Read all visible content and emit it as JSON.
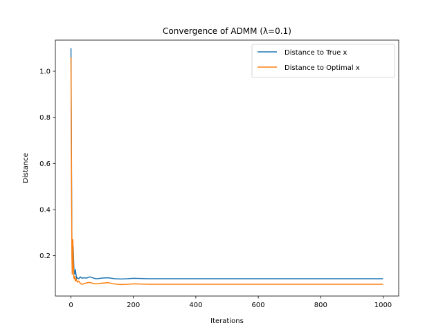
{
  "chart_data": {
    "type": "line",
    "title": "Convergence of ADMM (λ=0.1)",
    "xlabel": "Iterations",
    "ylabel": "Distance",
    "xlim": [
      -50,
      1050
    ],
    "ylim": [
      0.025,
      1.135
    ],
    "xticks": [
      0,
      200,
      400,
      600,
      800,
      1000
    ],
    "yticks": [
      0.2,
      0.4,
      0.6,
      0.8,
      1.0
    ],
    "xtick_labels": [
      "0",
      "200",
      "400",
      "600",
      "800",
      "1000"
    ],
    "ytick_labels": [
      "0.2",
      "0.4",
      "0.6",
      "0.8",
      "1.0"
    ],
    "grid": false,
    "legend_position": "top-right",
    "series": [
      {
        "name": "Distance to True x",
        "color": "#1f77b4",
        "x": [
          0,
          1,
          2,
          3,
          4,
          5,
          6,
          7,
          8,
          9,
          10,
          12,
          14,
          16,
          18,
          20,
          25,
          30,
          35,
          40,
          50,
          60,
          70,
          80,
          90,
          100,
          120,
          140,
          160,
          180,
          200,
          250,
          300,
          400,
          500,
          600,
          700,
          800,
          900,
          1000
        ],
        "y": [
          1.1,
          0.8,
          0.5,
          0.25,
          0.15,
          0.17,
          0.22,
          0.24,
          0.2,
          0.16,
          0.13,
          0.12,
          0.14,
          0.12,
          0.1,
          0.105,
          0.1,
          0.108,
          0.102,
          0.104,
          0.103,
          0.108,
          0.104,
          0.1,
          0.101,
          0.103,
          0.104,
          0.1,
          0.099,
          0.1,
          0.102,
          0.1,
          0.1,
          0.1,
          0.1,
          0.1,
          0.1,
          0.1,
          0.1,
          0.1
        ]
      },
      {
        "name": "Distance to Optimal x",
        "color": "#ff7f0e",
        "x": [
          0,
          1,
          2,
          3,
          4,
          5,
          6,
          7,
          8,
          9,
          10,
          12,
          14,
          16,
          18,
          20,
          25,
          30,
          35,
          40,
          50,
          60,
          70,
          80,
          90,
          100,
          120,
          140,
          160,
          180,
          200,
          250,
          300,
          400,
          500,
          600,
          700,
          800,
          900,
          1000
        ],
        "y": [
          1.06,
          0.7,
          0.45,
          0.2,
          0.12,
          0.16,
          0.27,
          0.2,
          0.15,
          0.11,
          0.1,
          0.11,
          0.09,
          0.1,
          0.095,
          0.085,
          0.09,
          0.08,
          0.076,
          0.078,
          0.082,
          0.084,
          0.08,
          0.078,
          0.079,
          0.081,
          0.083,
          0.077,
          0.075,
          0.076,
          0.078,
          0.076,
          0.076,
          0.076,
          0.076,
          0.076,
          0.076,
          0.076,
          0.076,
          0.076
        ]
      }
    ]
  }
}
